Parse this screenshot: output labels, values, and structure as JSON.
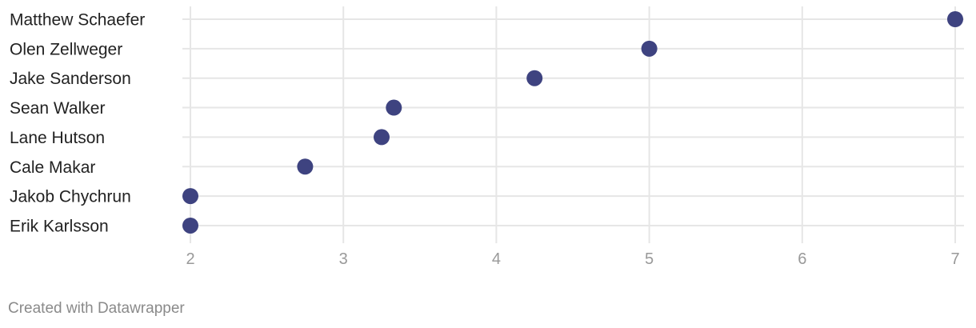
{
  "chart_data": {
    "type": "scatter",
    "style": "dot-plot",
    "categories": [
      "Matthew Schaefer",
      "Olen Zellweger",
      "Jake Sanderson",
      "Sean Walker",
      "Lane Hutson",
      "Cale Makar",
      "Jakob Chychrun",
      "Erik Karlsson"
    ],
    "values": [
      7,
      5,
      4.25,
      3.33,
      3.25,
      2.75,
      2,
      2
    ],
    "xlim": [
      2,
      7
    ],
    "xticks": [
      "2",
      "3",
      "4",
      "5",
      "6",
      "7"
    ],
    "grid": true,
    "dot_color": "#3e4380",
    "grid_color": "#e6e6e6"
  },
  "footer": {
    "credit": "Created with Datawrapper"
  }
}
